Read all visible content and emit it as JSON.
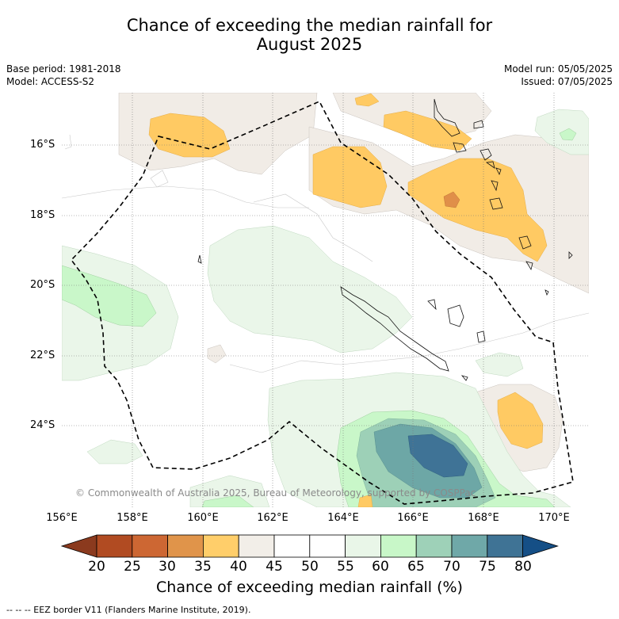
{
  "title": {
    "line1": "Chance of exceeding the median rainfall for",
    "line2": "August 2025"
  },
  "meta": {
    "base_period": "Base period: 1981-2018",
    "model": "Model: ACCESS-S2",
    "model_run": "Model run: 05/05/2025",
    "issued": "Issued: 07/05/2025"
  },
  "map": {
    "lat_labels": [
      "16°S",
      "18°S",
      "20°S",
      "22°S",
      "24°S"
    ],
    "lon_labels": [
      "156°E",
      "158°E",
      "160°E",
      "162°E",
      "164°E",
      "166°E",
      "168°E",
      "170°E"
    ],
    "copyright": "© Commonwealth of Australia 2025, Bureau of Meteorology, supported by COSPPac"
  },
  "colorbar": {
    "ticks": [
      "20",
      "25",
      "30",
      "35",
      "40",
      "45",
      "50",
      "55",
      "60",
      "65",
      "70",
      "75",
      "80"
    ],
    "colors": [
      "#8b3a1e",
      "#b14b22",
      "#cd6733",
      "#e0944a",
      "#ffce6a",
      "#f2eee8",
      "#ffffff",
      "#ffffff",
      "#e9f6e8",
      "#c8f7c8",
      "#9ed1b8",
      "#6fa8a8",
      "#3f7395",
      "#154f86"
    ],
    "label": "Chance of exceeding median rainfall (%)"
  },
  "legend": {
    "eez": "-- -- -- EEZ border V11 (Flanders Marine Institute, 2019)."
  }
}
